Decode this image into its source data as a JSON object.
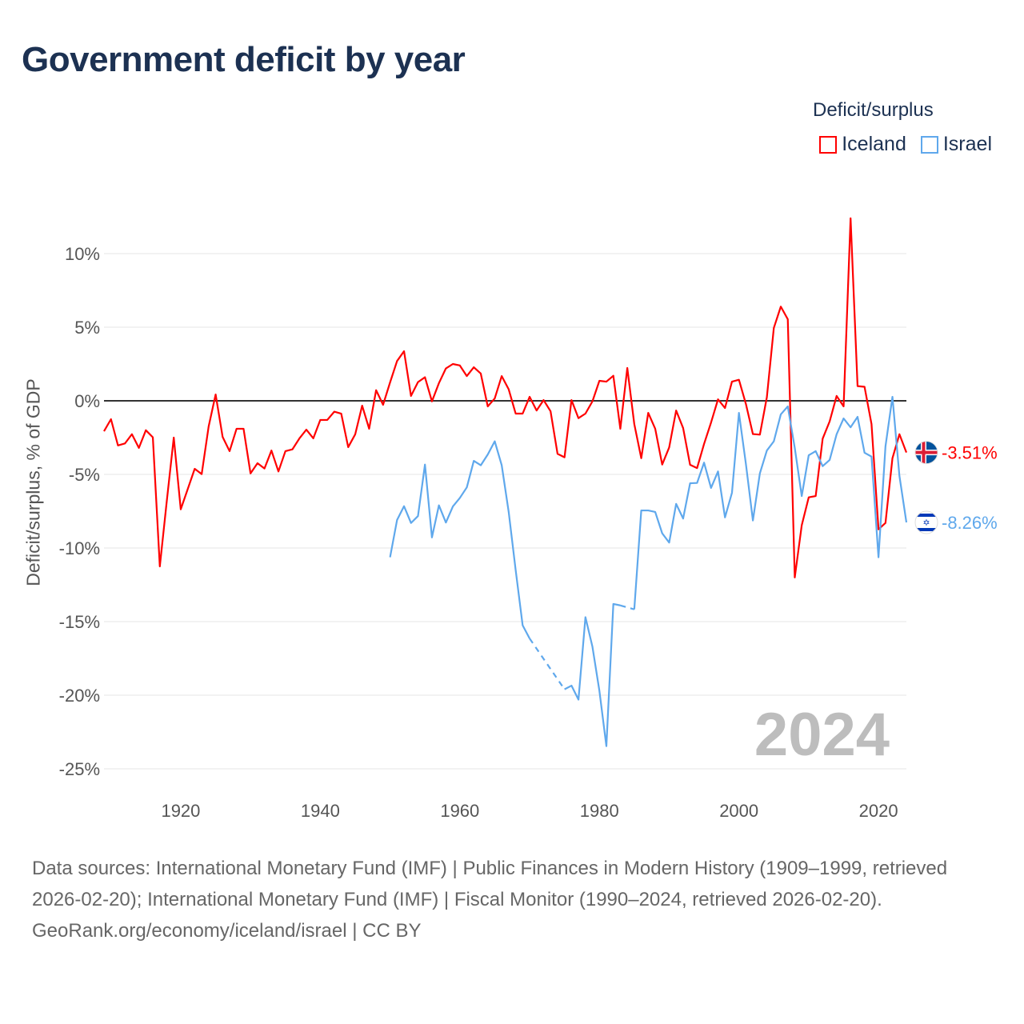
{
  "title": "Government deficit by year",
  "legend_title": "Deficit/surplus",
  "chart_data": {
    "type": "line",
    "title": "Government deficit by year",
    "ylabel": "Deficit/surplus, % of GDP",
    "xlabel": "",
    "xlim": [
      1909,
      2024
    ],
    "ylim": [
      -25,
      12.5
    ],
    "x_ticks": [
      1920,
      1940,
      1960,
      1980,
      2000,
      2020
    ],
    "y_ticks": [
      10,
      5,
      0,
      -5,
      -10,
      -15,
      -20,
      -25
    ],
    "y_tick_labels": [
      "10%",
      "5%",
      "0%",
      "-5%",
      "-10%",
      "-15%",
      "-20%",
      "-25%"
    ],
    "grid": true,
    "legend_position": "top-right",
    "year_watermark": "2024",
    "series": [
      {
        "name": "Iceland",
        "color": "#ff0000",
        "start_year": 1909,
        "end_label": "-3.51%",
        "values": [
          -2.07,
          -1.25,
          -3.03,
          -2.9,
          -2.27,
          -3.2,
          -2.0,
          -2.48,
          -11.25,
          -6.8,
          -2.5,
          -7.37,
          -6.0,
          -4.62,
          -4.98,
          -1.74,
          0.43,
          -2.45,
          -3.42,
          -1.9,
          -1.9,
          -4.93,
          -4.24,
          -4.6,
          -3.38,
          -4.8,
          -3.42,
          -3.3,
          -2.56,
          -1.96,
          -2.55,
          -1.3,
          -1.3,
          -0.74,
          -0.87,
          -3.15,
          -2.28,
          -0.33,
          -1.9,
          0.72,
          -0.27,
          1.25,
          2.7,
          3.37,
          0.33,
          1.27,
          1.6,
          -0.04,
          1.2,
          2.2,
          2.5,
          2.4,
          1.68,
          2.28,
          1.85,
          -0.38,
          0.16,
          1.68,
          0.78,
          -0.87,
          -0.87,
          0.27,
          -0.66,
          0.05,
          -0.71,
          -3.6,
          -3.84,
          0.05,
          -1.18,
          -0.87,
          -0.04,
          1.36,
          1.3,
          1.7,
          -1.9,
          2.23,
          -1.58,
          -3.9,
          -0.82,
          -1.9,
          -4.33,
          -3.17,
          -0.66,
          -1.85,
          -4.35,
          -4.57,
          -2.93,
          -1.48,
          0.1,
          -0.49,
          1.3,
          1.43,
          -0.22,
          -2.26,
          -2.3,
          0.24,
          4.95,
          6.4,
          5.54,
          -12.0,
          -8.46,
          -6.56,
          -6.47,
          -2.57,
          -1.4,
          0.33,
          -0.38,
          12.4,
          1.0,
          0.95,
          -1.58,
          -8.73,
          -8.3,
          -3.9,
          -2.27,
          -3.51
        ]
      },
      {
        "name": "Israel",
        "color": "#5fa8ec",
        "start_year": 1950,
        "end_label": "-8.26%",
        "values": [
          -10.63,
          -8.1,
          -7.16,
          -8.3,
          -7.83,
          -4.33,
          -9.28,
          -7.1,
          -8.27,
          -7.18,
          -6.6,
          -5.88,
          -4.08,
          -4.38,
          -3.65,
          -2.75,
          -4.38,
          -7.55,
          -11.5,
          -15.25,
          -16.15,
          null,
          null,
          null,
          null,
          -19.6,
          -19.35,
          -20.3,
          -14.7,
          -16.7,
          -19.7,
          -23.46,
          -13.8,
          -13.9,
          null,
          -14.17,
          -7.45,
          -7.45,
          -7.55,
          -9.0,
          -9.63,
          -7.0,
          -8.0,
          -5.6,
          -5.58,
          -4.2,
          -5.92,
          -4.8,
          -7.92,
          -6.25,
          -0.82,
          -4.3,
          -8.13,
          -4.93,
          -3.38,
          -2.75,
          -0.92,
          -0.38,
          -3.2,
          -6.47,
          -3.7,
          -3.42,
          -4.44,
          -4.02,
          -2.27,
          -1.2,
          -1.8,
          -1.09,
          -3.53,
          -3.79,
          -10.63,
          -3.1,
          0.27,
          -5.1,
          -8.26
        ]
      }
    ]
  },
  "footer": {
    "sources": "Data sources: International Monetary Fund (IMF) | Public Finances in Modern History (1909–1999, retrieved 2026-02-20); International Monetary Fund (IMF) | Fiscal Monitor (1990–2024, retrieved 2026-02-20).",
    "credit": "GeoRank.org/economy/iceland/israel | CC BY"
  }
}
